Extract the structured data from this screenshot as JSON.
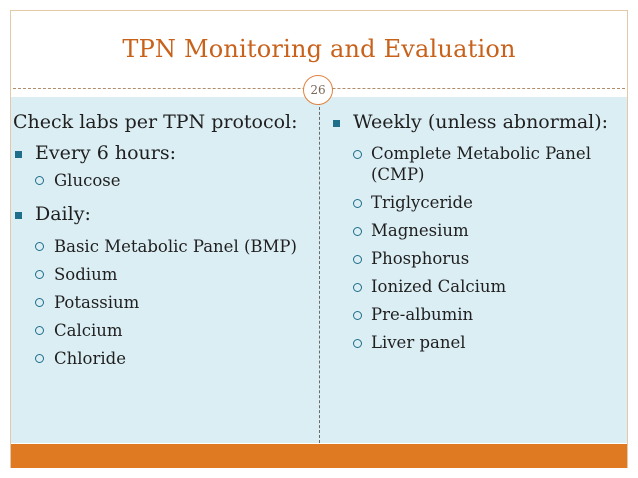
{
  "slide": {
    "title": "TPN Monitoring and Evaluation",
    "page_number": "26"
  },
  "left": {
    "heading": "Check labs per TPN protocol:",
    "groups": [
      {
        "label": "Every 6 hours:",
        "items": [
          "Glucose"
        ]
      },
      {
        "label": "Daily:",
        "items": [
          "Basic Metabolic Panel (BMP)",
          "Sodium",
          "Potassium",
          "Calcium",
          "Chloride"
        ]
      }
    ]
  },
  "right": {
    "heading": "Weekly (unless abnormal):",
    "items": [
      {
        "lines": [
          "Complete Metabolic Panel",
          "(CMP)"
        ]
      },
      {
        "lines": [
          "Triglyceride"
        ]
      },
      {
        "lines": [
          "Magnesium"
        ]
      },
      {
        "lines": [
          "Phosphorus"
        ]
      },
      {
        "lines": [
          "Ionized Calcium"
        ]
      },
      {
        "lines": [
          "Pre-albumin"
        ]
      },
      {
        "lines": [
          "Liver panel"
        ]
      }
    ]
  },
  "colors": {
    "title": "#c8611a",
    "content_bg": "#dbeef4",
    "footer": "#e07a22",
    "bullet": "#1f6f8b"
  }
}
